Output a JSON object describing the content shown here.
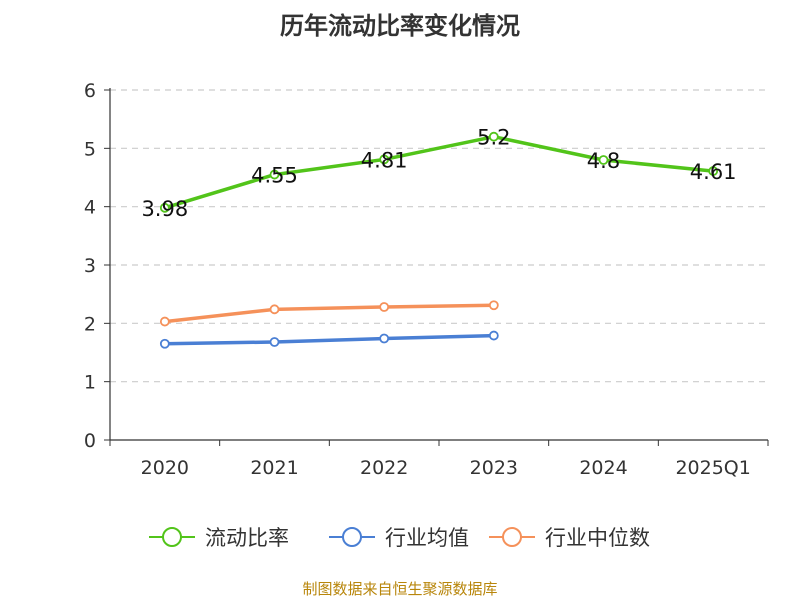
{
  "chart_data": {
    "type": "line",
    "title": "历年流动比率变化情况",
    "source": "制图数据来自恒生聚源数据库",
    "categories": [
      "2020",
      "2021",
      "2022",
      "2023",
      "2024",
      "2025Q1"
    ],
    "ylim": [
      0,
      6
    ],
    "yticks": [
      "0",
      "1",
      "2",
      "3",
      "4",
      "5",
      "6"
    ],
    "grid": true,
    "legend_position": "bottom",
    "series": [
      {
        "name": "流动比率",
        "color": "#52c41a",
        "values": [
          3.98,
          4.55,
          4.81,
          5.2,
          4.8,
          4.61
        ],
        "labels": [
          "3.98",
          "4.55",
          "4.81",
          "5.2",
          "4.8",
          "4.61"
        ],
        "show_labels": true
      },
      {
        "name": "行业均值",
        "color": "#4a7fd4",
        "values": [
          1.65,
          1.68,
          1.74,
          1.79,
          null,
          null
        ],
        "show_labels": false
      },
      {
        "name": "行业中位数",
        "color": "#f5915a",
        "values": [
          2.03,
          2.24,
          2.28,
          2.31,
          null,
          null
        ],
        "show_labels": false
      }
    ]
  }
}
